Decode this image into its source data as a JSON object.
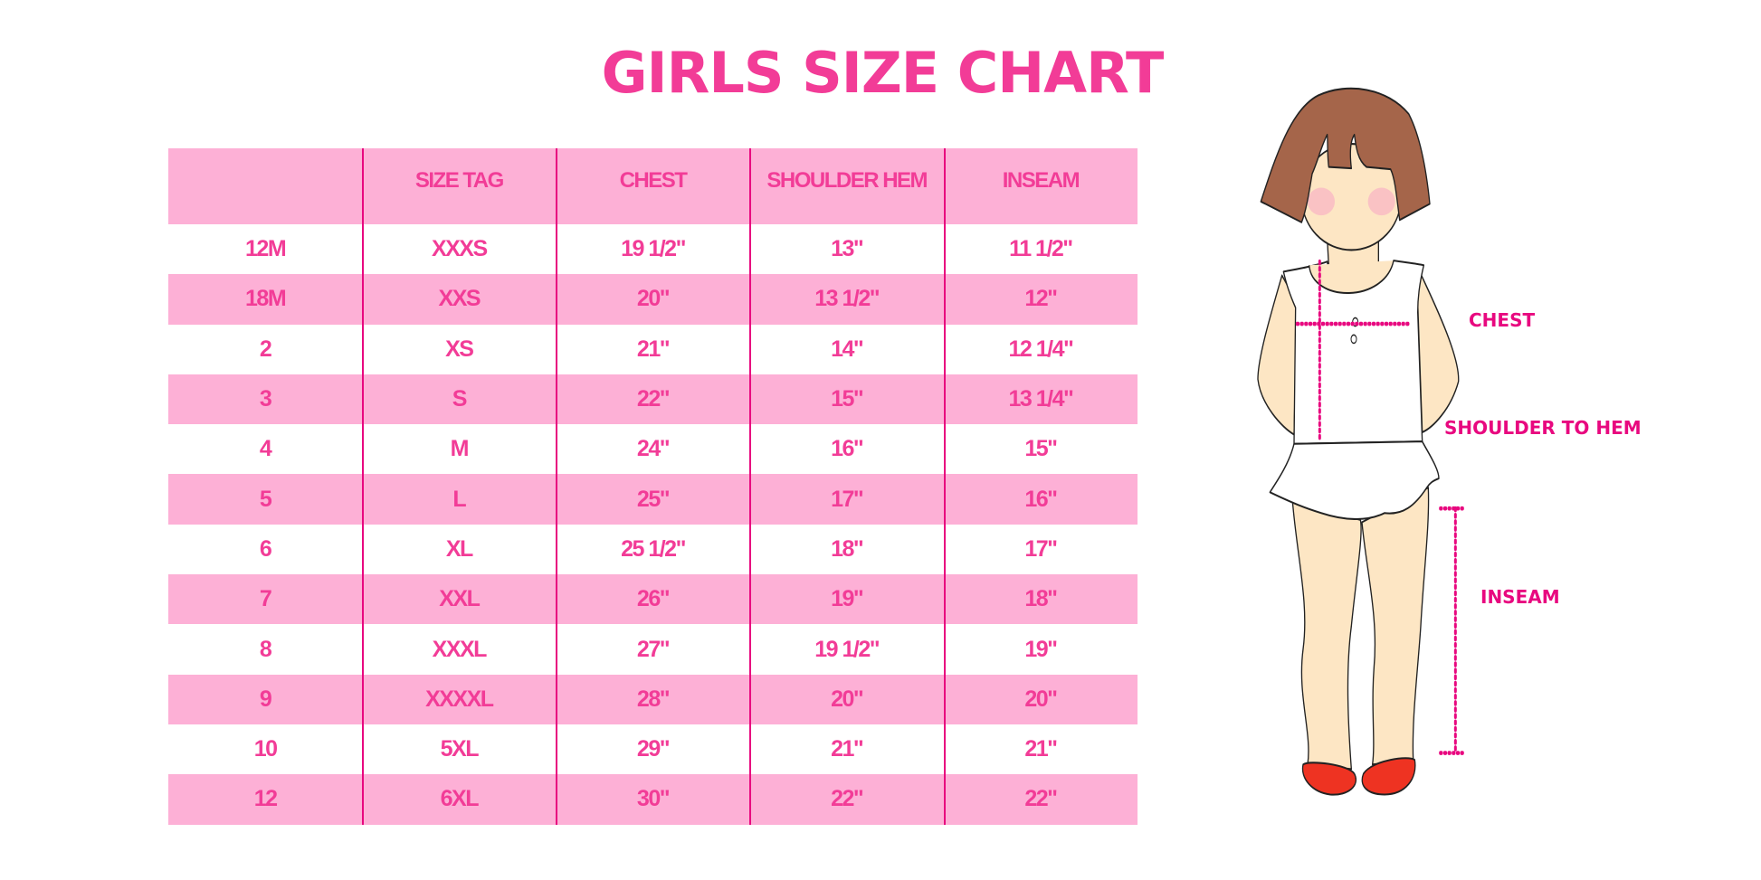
{
  "title": "GIRLS SIZE CHART",
  "colors": {
    "accent": "#f23c97",
    "stripe": "#fdb0d6",
    "divider": "#e8087f"
  },
  "table": {
    "headers": [
      "",
      "SIZE TAG",
      "CHEST",
      "SHOULDER HEM",
      "INSEAM"
    ],
    "rows": [
      [
        "12M",
        "XXXS",
        "19 1/2\"",
        "13\"",
        "11 1/2\""
      ],
      [
        "18M",
        "XXS",
        "20\"",
        "13 1/2\"",
        "12\""
      ],
      [
        "2",
        "XS",
        "21\"",
        "14\"",
        "12 1/4\""
      ],
      [
        "3",
        "S",
        "22\"",
        "15\"",
        "13 1/4\""
      ],
      [
        "4",
        "M",
        "24\"",
        "16\"",
        "15\""
      ],
      [
        "5",
        "L",
        "25\"",
        "17\"",
        "16\""
      ],
      [
        "6",
        "XL",
        "25 1/2\"",
        "18\"",
        "17\""
      ],
      [
        "7",
        "XXL",
        "26\"",
        "19\"",
        "18\""
      ],
      [
        "8",
        "XXXL",
        "27\"",
        "19 1/2\"",
        "19\""
      ],
      [
        "9",
        "XXXXL",
        "28\"",
        "20\"",
        "20\""
      ],
      [
        "10",
        "5XL",
        "29\"",
        "21\"",
        "21\""
      ],
      [
        "12",
        "6XL",
        "30\"",
        "22\"",
        "22\""
      ]
    ]
  },
  "figure": {
    "labels": {
      "chest": "CHEST",
      "shoulder_to_hem": "SHOULDER TO HEM",
      "inseam": "INSEAM"
    }
  }
}
